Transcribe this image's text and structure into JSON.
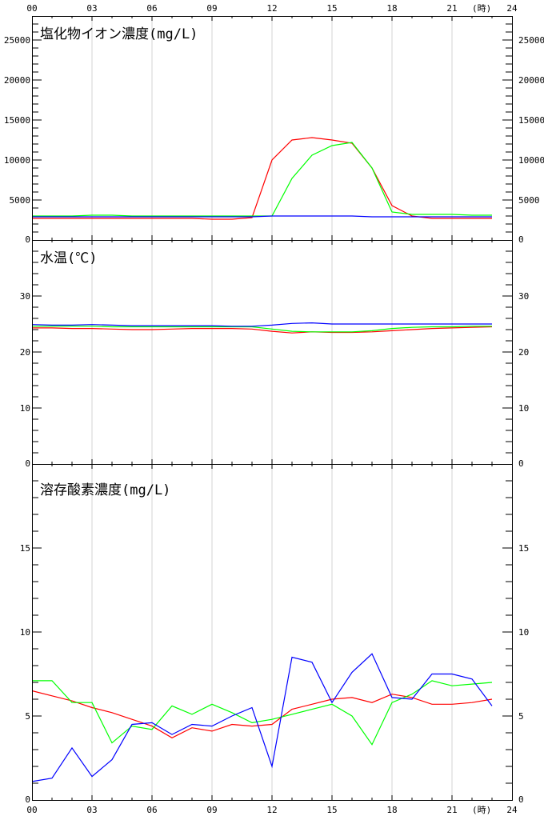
{
  "hour_unit": "(時)",
  "hour_ticks": [
    "00",
    "03",
    "06",
    "09",
    "12",
    "15",
    "18",
    "21",
    "24"
  ],
  "colors": {
    "red": "#ff0000",
    "green": "#00ff00",
    "blue": "#0000ff",
    "grid": "#d3d3d3",
    "frame": "#000000"
  },
  "chart_data": [
    {
      "type": "line",
      "title": "塩化物イオン濃度(mg/L)",
      "x": [
        0,
        1,
        2,
        3,
        4,
        5,
        6,
        7,
        8,
        9,
        10,
        11,
        12,
        13,
        14,
        15,
        16,
        17,
        18,
        19,
        20,
        21,
        22,
        23
      ],
      "xlim": [
        0,
        24
      ],
      "ylim": [
        0,
        28000
      ],
      "yticks": [
        0,
        5000,
        10000,
        15000,
        20000,
        25000
      ],
      "minor_step": 1000,
      "grid": true,
      "series": [
        {
          "color": "red",
          "values": [
            2700,
            2700,
            2700,
            2700,
            2700,
            2700,
            2700,
            2700,
            2700,
            2600,
            2600,
            2800,
            10000,
            12500,
            12800,
            12500,
            12100,
            9000,
            4300,
            3000,
            2700,
            2700,
            2700,
            2700
          ]
        },
        {
          "color": "green",
          "values": [
            3000,
            3000,
            3000,
            3100,
            3100,
            3000,
            3000,
            3000,
            3000,
            3000,
            3000,
            3000,
            3000,
            7700,
            10600,
            11800,
            12200,
            9000,
            3500,
            3200,
            3200,
            3200,
            3100,
            3100
          ]
        },
        {
          "color": "blue",
          "values": [
            2900,
            2900,
            2900,
            2900,
            2900,
            2900,
            2900,
            2900,
            2900,
            2900,
            2900,
            2900,
            3000,
            3000,
            3000,
            3000,
            3000,
            2900,
            2900,
            2900,
            2900,
            2900,
            2900,
            2900
          ]
        }
      ]
    },
    {
      "type": "line",
      "title": "水温(℃)",
      "x": [
        0,
        1,
        2,
        3,
        4,
        5,
        6,
        7,
        8,
        9,
        10,
        11,
        12,
        13,
        14,
        15,
        16,
        17,
        18,
        19,
        20,
        21,
        22,
        23
      ],
      "xlim": [
        0,
        24
      ],
      "ylim": [
        0,
        40
      ],
      "yticks": [
        0,
        10,
        20,
        30
      ],
      "minor_step": 2,
      "grid": true,
      "series": [
        {
          "color": "red",
          "values": [
            24.3,
            24.3,
            24.2,
            24.2,
            24.1,
            24.0,
            24.0,
            24.1,
            24.2,
            24.2,
            24.2,
            24.1,
            23.7,
            23.4,
            23.6,
            23.5,
            23.5,
            23.6,
            23.8,
            24.0,
            24.2,
            24.3,
            24.4,
            24.5
          ]
        },
        {
          "color": "green",
          "values": [
            24.6,
            24.6,
            24.6,
            24.6,
            24.5,
            24.5,
            24.5,
            24.5,
            24.5,
            24.5,
            24.5,
            24.5,
            24.1,
            23.7,
            23.6,
            23.6,
            23.6,
            23.8,
            24.2,
            24.4,
            24.5,
            24.5,
            24.6,
            24.6
          ]
        },
        {
          "color": "blue",
          "values": [
            24.9,
            24.8,
            24.8,
            24.9,
            24.8,
            24.7,
            24.7,
            24.7,
            24.7,
            24.7,
            24.6,
            24.6,
            24.8,
            25.1,
            25.2,
            25.0,
            25.0,
            25.0,
            25.0,
            25.0,
            25.0,
            25.0,
            25.0,
            25.0
          ]
        }
      ]
    },
    {
      "type": "line",
      "title": "溶存酸素濃度(mg/L)",
      "x": [
        0,
        1,
        2,
        3,
        4,
        5,
        6,
        7,
        8,
        9,
        10,
        11,
        12,
        13,
        14,
        15,
        16,
        17,
        18,
        19,
        20,
        21,
        22,
        23
      ],
      "xlim": [
        0,
        24
      ],
      "ylim": [
        0,
        20
      ],
      "yticks": [
        0,
        5,
        10,
        15
      ],
      "minor_step": 1,
      "grid": true,
      "series": [
        {
          "color": "red",
          "values": [
            6.5,
            6.2,
            5.9,
            5.5,
            5.2,
            4.8,
            4.4,
            3.7,
            4.3,
            4.1,
            4.5,
            4.4,
            4.5,
            5.4,
            5.7,
            6.0,
            6.1,
            5.8,
            6.3,
            6.1,
            5.7,
            5.7,
            5.8,
            6.0
          ]
        },
        {
          "color": "green",
          "values": [
            7.1,
            7.1,
            5.8,
            5.8,
            3.4,
            4.4,
            4.2,
            5.6,
            5.1,
            5.7,
            5.2,
            4.6,
            4.8,
            5.1,
            5.4,
            5.7,
            5.0,
            3.3,
            5.8,
            6.3,
            7.1,
            6.8,
            6.9,
            7.0
          ]
        },
        {
          "color": "blue",
          "values": [
            1.1,
            1.3,
            3.1,
            1.4,
            2.4,
            4.5,
            4.6,
            3.9,
            4.5,
            4.4,
            5.0,
            5.5,
            2.0,
            8.5,
            8.2,
            5.8,
            7.6,
            8.7,
            6.1,
            6.0,
            7.5,
            7.5,
            7.2,
            5.6
          ]
        }
      ]
    }
  ]
}
